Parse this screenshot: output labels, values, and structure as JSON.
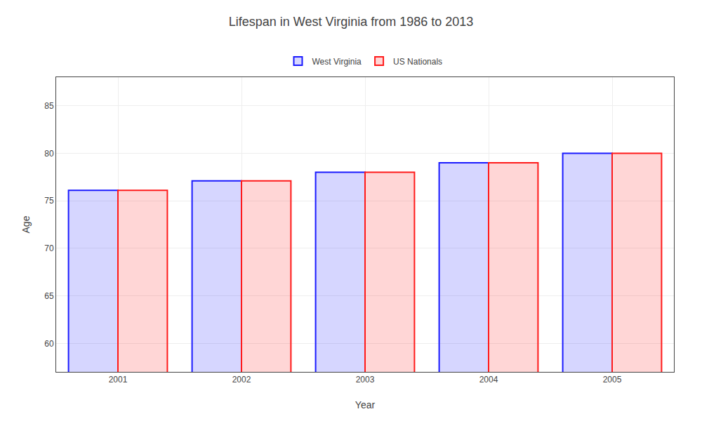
{
  "chart_data": {
    "type": "bar",
    "title": "Lifespan in West Virginia from 1986 to 2013",
    "xlabel": "Year",
    "ylabel": "Age",
    "categories": [
      "2001",
      "2002",
      "2003",
      "2004",
      "2005"
    ],
    "series": [
      {
        "name": "West Virginia",
        "color": "#1a1aff",
        "values": [
          76.1,
          77.1,
          78.0,
          79.0,
          80.0
        ]
      },
      {
        "name": "US Nationals",
        "color": "#ff1a1a",
        "values": [
          76.1,
          77.1,
          78.0,
          79.0,
          80.0
        ]
      }
    ],
    "ylim": [
      57,
      88
    ],
    "yticks": [
      60,
      65,
      70,
      75,
      80,
      85
    ],
    "grid": true,
    "legend": "top"
  }
}
